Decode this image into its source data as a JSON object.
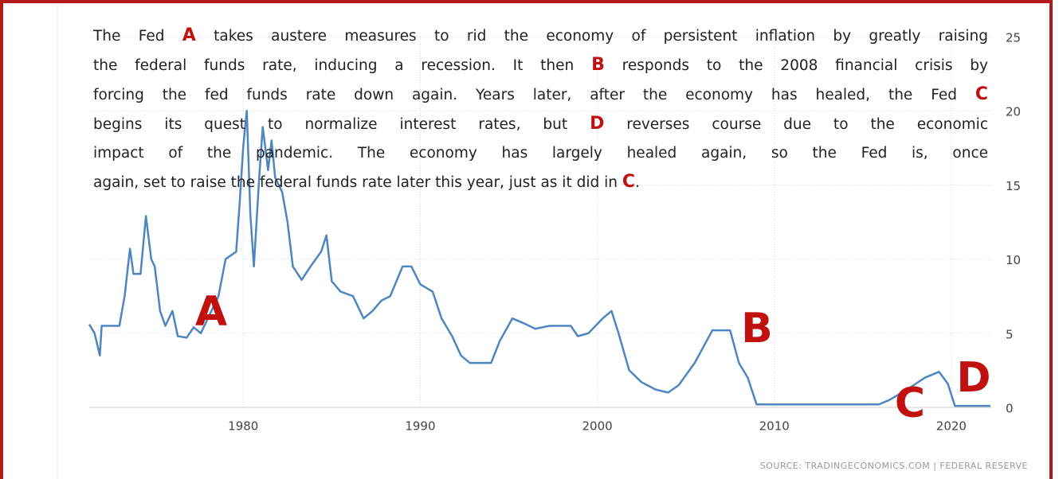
{
  "chart_data": {
    "type": "line",
    "caption_lines": [
      [
        {
          "text": "The Fed "
        },
        {
          "marker": "A"
        },
        {
          "text": " takes austere measures to rid the economy of persistent inflation by greatly raising"
        }
      ],
      [
        {
          "text": "the federal funds rate, inducing a recession. It then "
        },
        {
          "marker": "B"
        },
        {
          "text": " responds to the 2008 financial crisis by"
        }
      ],
      [
        {
          "text": "forcing the fed funds rate down again. Years later, after the economy has healed, the Fed "
        },
        {
          "marker": "C"
        }
      ],
      [
        {
          "text": "begins its quest to normalize interest rates, but "
        },
        {
          "marker": "D"
        },
        {
          "text": " reverses course due to the economic"
        }
      ],
      [
        {
          "text": "impact of the pandemic. The economy has largely healed again, so the Fed is, once"
        }
      ],
      [
        {
          "text": "again, set to raise the federal funds rate later this year, just as it did in "
        },
        {
          "marker": "C"
        },
        {
          "text": "."
        }
      ]
    ],
    "chart_labels": [
      "A",
      "B",
      "C",
      "D"
    ],
    "source": "SOURCE: TRADINGECONOMICS.COM | FEDERAL RESERVE",
    "x": [
      1971.3,
      1971.6,
      1971.9,
      1972.0,
      1973.0,
      1973.3,
      1973.6,
      1973.8,
      1974.2,
      1974.5,
      1974.8,
      1975.0,
      1975.3,
      1975.6,
      1976.0,
      1976.3,
      1976.8,
      1977.2,
      1977.6,
      1978.0,
      1978.6,
      1979.0,
      1979.6,
      1979.8,
      1980.0,
      1980.2,
      1980.4,
      1980.6,
      1980.9,
      1981.1,
      1981.4,
      1981.6,
      1981.8,
      1982.2,
      1982.5,
      1982.8,
      1983.3,
      1983.8,
      1984.4,
      1984.7,
      1985.0,
      1985.5,
      1986.2,
      1986.8,
      1987.3,
      1987.8,
      1988.3,
      1989.0,
      1989.5,
      1990.0,
      1990.7,
      1991.2,
      1991.8,
      1992.3,
      1992.8,
      1994.0,
      1994.5,
      1995.2,
      1995.8,
      1996.5,
      1997.3,
      1998.5,
      1998.9,
      1999.5,
      2000.3,
      2000.8,
      2001.2,
      2001.8,
      2002.5,
      2003.3,
      2004.0,
      2004.6,
      2005.5,
      2006.5,
      2007.5,
      2008.0,
      2008.5,
      2009.0,
      2015.9,
      2016.5,
      2017.5,
      2018.5,
      2019.3,
      2019.8,
      2020.2,
      2022.2
    ],
    "series": [
      {
        "name": "Fed funds rate",
        "color": "#4f86c0",
        "values": [
          5.6,
          5.0,
          3.5,
          5.5,
          5.5,
          7.5,
          10.7,
          9.0,
          9.0,
          12.9,
          10.0,
          9.5,
          6.5,
          5.5,
          6.5,
          4.8,
          4.7,
          5.4,
          5.0,
          6.0,
          7.5,
          10.0,
          10.5,
          13.8,
          17.6,
          20.0,
          13.0,
          9.5,
          15.5,
          18.9,
          16.0,
          18.0,
          15.5,
          14.5,
          12.5,
          9.5,
          8.6,
          9.5,
          10.5,
          11.6,
          8.5,
          7.8,
          7.5,
          6.0,
          6.5,
          7.2,
          7.5,
          9.5,
          9.5,
          8.3,
          7.8,
          6.0,
          4.8,
          3.5,
          3.0,
          3.0,
          4.5,
          6.0,
          5.7,
          5.3,
          5.5,
          5.5,
          4.8,
          5.0,
          6.0,
          6.5,
          5.0,
          2.5,
          1.7,
          1.2,
          1.0,
          1.5,
          3.0,
          5.2,
          5.2,
          3.0,
          2.0,
          0.2,
          0.2,
          0.5,
          1.2,
          2.0,
          2.4,
          1.6,
          0.1,
          0.1
        ]
      }
    ],
    "xlim": [
      1971.3,
      2022.3
    ],
    "xticks": [
      1980,
      1990,
      2000,
      2010,
      2020
    ],
    "ylim": [
      0,
      25
    ],
    "yticks": [
      0,
      5,
      10,
      15,
      20,
      25
    ],
    "grid": true
  }
}
